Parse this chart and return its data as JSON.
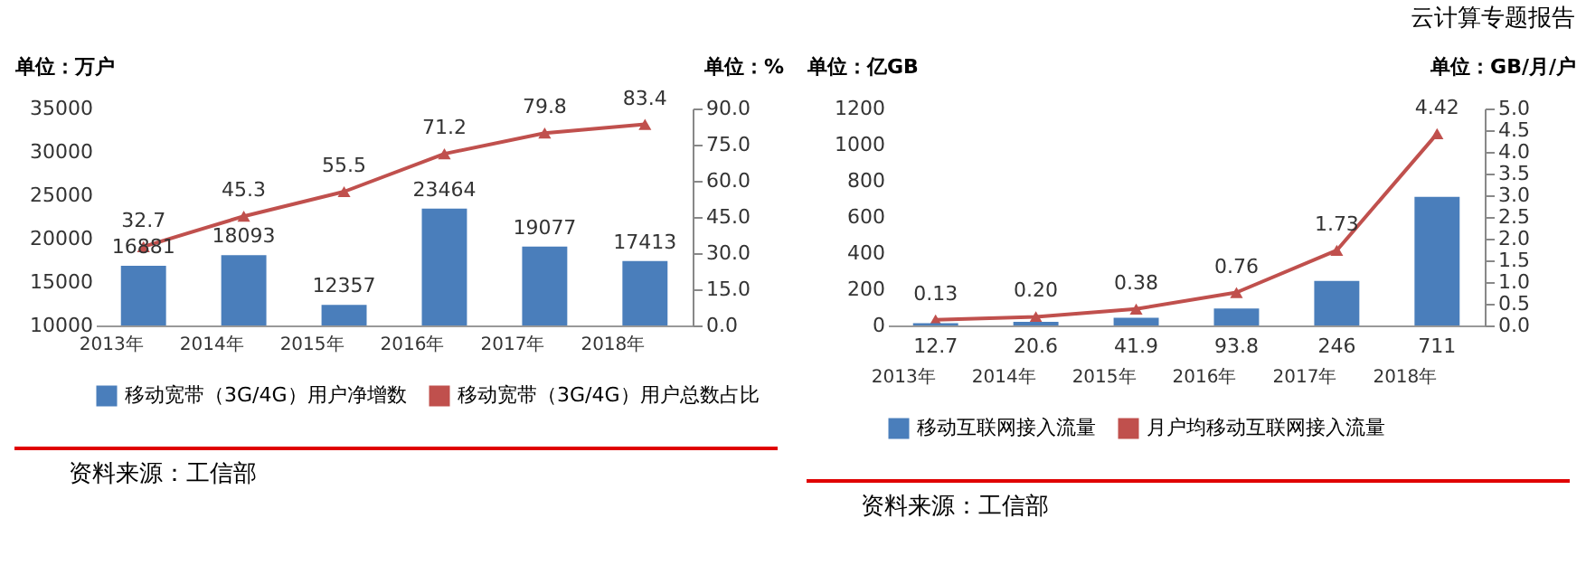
{
  "chart_data": [
    {
      "type": "bar",
      "ylabel": "单位：万户",
      "y2label": "单位：%",
      "categories": [
        "2013年",
        "2014年",
        "2015年",
        "2016年",
        "2017年",
        "2018年"
      ],
      "series": [
        {
          "name": "移动宽带（3G/4G）用户净增数",
          "type": "bar",
          "color": "#4a7ebb",
          "values": [
            16881,
            18093,
            12357,
            23464,
            19077,
            17413
          ]
        },
        {
          "name": "移动宽带（3G/4G）用户总数占比",
          "type": "line",
          "axis": "y2",
          "color": "#c0504d",
          "values": [
            32.7,
            45.3,
            55.5,
            71.2,
            79.8,
            83.4
          ]
        }
      ],
      "ylim": [
        10000,
        35000
      ],
      "yticks": [
        10000,
        15000,
        20000,
        25000,
        30000,
        35000
      ],
      "y2lim": [
        0,
        90
      ],
      "y2ticks": [
        {
          "value": 0,
          "label": "0.0"
        },
        {
          "value": 15,
          "label": "15.0"
        },
        {
          "value": 30,
          "label": "30.0"
        },
        {
          "value": 45,
          "label": "45.0"
        },
        {
          "value": 60,
          "label": "60.0"
        },
        {
          "value": 75,
          "label": "75.0"
        },
        {
          "value": 90,
          "label": "90.0"
        }
      ],
      "data_labels": true,
      "marker": "triangle",
      "legend": "bottom",
      "grid": false,
      "annotations": [
        "资料来源：工信部"
      ]
    },
    {
      "type": "bar",
      "title": "云计算专题报告",
      "ylabel": "单位：亿GB",
      "y2label": "单位：GB/月/户",
      "categories": [
        "2013年",
        "2014年",
        "2015年",
        "2016年",
        "2017年",
        "2018年"
      ],
      "series": [
        {
          "name": "移动互联网接入流量",
          "type": "bar",
          "color": "#4a7ebb",
          "values": [
            12.7,
            20.6,
            41.9,
            93.8,
            246,
            711
          ]
        },
        {
          "name": "月户均移动互联网接入流量",
          "type": "line",
          "axis": "y2",
          "color": "#c0504d",
          "values": [
            0.13,
            0.2,
            0.38,
            0.76,
            1.73,
            4.42
          ],
          "value_labels": [
            "0.13",
            "0.20",
            "0.38",
            "0.76",
            "1.73",
            "4.42"
          ]
        }
      ],
      "ylim": [
        0,
        1200
      ],
      "yticks": [
        0,
        200,
        400,
        600,
        800,
        1000,
        1200
      ],
      "y2lim": [
        0,
        5
      ],
      "y2ticks": [
        {
          "value": 0,
          "label": "0.0"
        },
        {
          "value": 0.5,
          "label": "0.5"
        },
        {
          "value": 1,
          "label": "1.0"
        },
        {
          "value": 1.5,
          "label": "1.5"
        },
        {
          "value": 2,
          "label": "2.0"
        },
        {
          "value": 2.5,
          "label": "2.5"
        },
        {
          "value": 3,
          "label": "3.0"
        },
        {
          "value": 3.5,
          "label": "3.5"
        },
        {
          "value": 4,
          "label": "4.0"
        },
        {
          "value": 4.5,
          "label": "4.5"
        },
        {
          "value": 5,
          "label": "5.0"
        }
      ],
      "data_labels": true,
      "marker": "triangle",
      "legend": "bottom",
      "grid": false,
      "annotations": [
        "资料来源：工信部"
      ]
    }
  ]
}
